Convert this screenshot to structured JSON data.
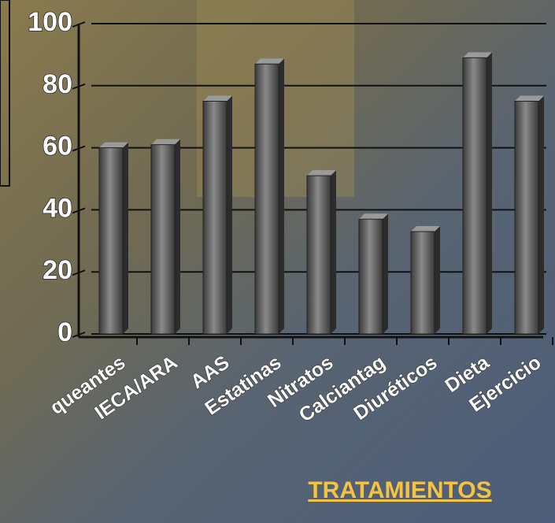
{
  "chart_data": {
    "type": "bar",
    "x_label": "TRATAMIENTOS",
    "categories": [
      "queantes",
      "IECA/ARA",
      "AAS",
      "Estatinas",
      "Nitratos",
      "Calciantag",
      "Diuréticos",
      "Dieta",
      "Ejercicio"
    ],
    "values": [
      60,
      61,
      75,
      87,
      51,
      37,
      33,
      89,
      75
    ],
    "color": "#555555",
    "ylim": [
      0,
      100
    ],
    "yticks": [
      0,
      20,
      40,
      60,
      80,
      100
    ],
    "grid": true
  }
}
